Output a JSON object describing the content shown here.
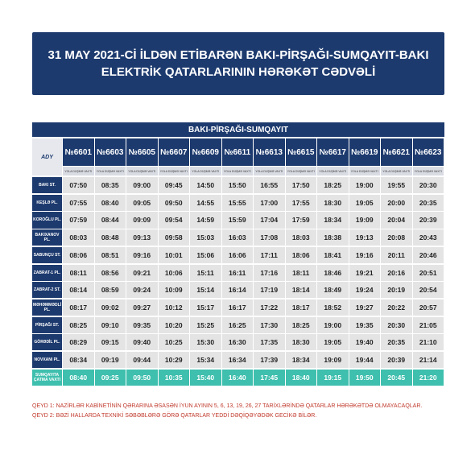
{
  "header": {
    "title_lines": [
      "31 MAY 2021-Cİ İLDƏN ETİBARƏN BAKI-PİRŞAĞI-SUMQAYIT-BAKI",
      "ELEKTRİK QATARLARININ HƏRƏKƏT CƏDVƏLİ"
    ]
  },
  "table": {
    "section_title": "BAKI-PİRŞAĞI-SUMQAYIT",
    "logo": "ADY",
    "trains": [
      "№6601",
      "№6603",
      "№6605",
      "№6607",
      "№6609",
      "№6611",
      "№6613",
      "№6615",
      "№6617",
      "№6619",
      "№6621",
      "№6623"
    ],
    "subheader": "YOLA DÜŞMƏ VAXTI",
    "rows": [
      {
        "station": "BAKI ST.",
        "times": [
          "07:50",
          "08:35",
          "09:00",
          "09:45",
          "14:50",
          "15:50",
          "16:55",
          "17:50",
          "18:25",
          "19:00",
          "19:55",
          "20:30"
        ]
      },
      {
        "station": "KEŞLƏ PL.",
        "times": [
          "07:55",
          "08:40",
          "09:05",
          "09:50",
          "14:55",
          "15:55",
          "17:00",
          "17:55",
          "18:30",
          "19:05",
          "20:00",
          "20:35"
        ]
      },
      {
        "station": "KOROĞLU PL.",
        "times": [
          "07:59",
          "08:44",
          "09:09",
          "09:54",
          "14:59",
          "15:59",
          "17:04",
          "17:59",
          "18:34",
          "19:09",
          "20:04",
          "20:39"
        ]
      },
      {
        "station": "BAKIXANOV PL.",
        "times": [
          "08:03",
          "08:48",
          "09:13",
          "09:58",
          "15:03",
          "16:03",
          "17:08",
          "18:03",
          "18:38",
          "19:13",
          "20:08",
          "20:43"
        ]
      },
      {
        "station": "SABUNÇU ST.",
        "times": [
          "08:06",
          "08:51",
          "09:16",
          "10:01",
          "15:06",
          "16:06",
          "17:11",
          "18:06",
          "18:41",
          "19:16",
          "20:11",
          "20:46"
        ]
      },
      {
        "station": "ZABRAT-1 PL.",
        "times": [
          "08:11",
          "08:56",
          "09:21",
          "10:06",
          "15:11",
          "16:11",
          "17:16",
          "18:11",
          "18:46",
          "19:21",
          "20:16",
          "20:51"
        ]
      },
      {
        "station": "ZABRAT-2 ST.",
        "times": [
          "08:14",
          "08:59",
          "09:24",
          "10:09",
          "15:14",
          "16:14",
          "17:19",
          "18:14",
          "18:49",
          "19:24",
          "20:19",
          "20:54"
        ]
      },
      {
        "station": "MƏHƏMMƏDLİ PL.",
        "times": [
          "08:17",
          "09:02",
          "09:27",
          "10:12",
          "15:17",
          "16:17",
          "17:22",
          "18:17",
          "18:52",
          "19:27",
          "20:22",
          "20:57"
        ]
      },
      {
        "station": "PİRŞAĞI ST.",
        "times": [
          "08:25",
          "09:10",
          "09:35",
          "10:20",
          "15:25",
          "16:25",
          "17:30",
          "18:25",
          "19:00",
          "19:35",
          "20:30",
          "21:05"
        ]
      },
      {
        "station": "GÖRƏDİL PL.",
        "times": [
          "08:29",
          "09:15",
          "09:40",
          "10:25",
          "15:30",
          "16:30",
          "17:35",
          "18:30",
          "19:05",
          "19:40",
          "20:35",
          "21:10"
        ]
      },
      {
        "station": "NOVXANI PL.",
        "times": [
          "08:34",
          "09:19",
          "09:44",
          "10:29",
          "15:34",
          "16:34",
          "17:39",
          "18:34",
          "19:09",
          "19:44",
          "20:39",
          "21:14"
        ]
      },
      {
        "station": "SUMQAYITA ÇATMA VAXTI",
        "times": [
          "08:40",
          "09:25",
          "09:50",
          "10:35",
          "15:40",
          "16:40",
          "17:45",
          "18:40",
          "19:15",
          "19:50",
          "20:45",
          "21:20"
        ]
      }
    ]
  },
  "notes": [
    "QEYD 1: NAZİRLƏR KABİNETİNİN QƏRARINA ƏSASƏN İYUN AYININ 5, 6, 13, 19, 26, 27 TARİXLƏRİNDƏ QATARLAR HƏRƏKƏTDƏ OLMAYACAQLAR.",
    "QEYD 2: BƏZİ HALLARDA TEXNİKİ SƏBƏBLƏRƏ GÖRƏ QATARLAR YEDDİ DƏQİQƏYƏDƏK GECİKƏ BİLƏR."
  ]
}
